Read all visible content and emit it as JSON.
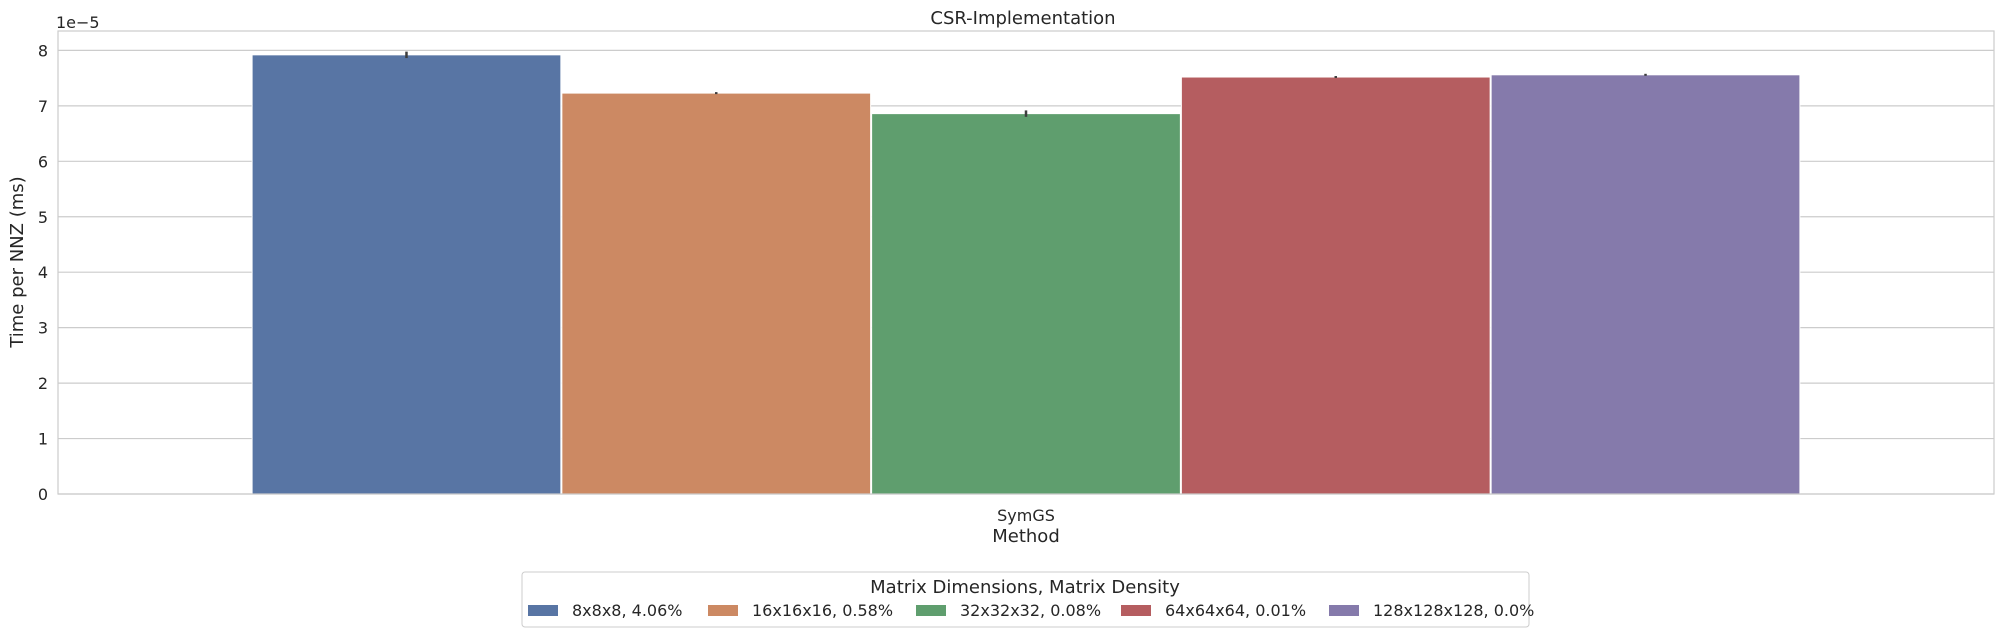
{
  "chart_data": {
    "type": "bar",
    "title": "CSR-Implementation",
    "xlabel": "Method",
    "ylabel": "Time per NNZ (ms)",
    "y_scale_label": "1e−5",
    "categories": [
      "SymGS"
    ],
    "ylim": [
      0,
      8.35
    ],
    "yticks": [
      "0",
      "1",
      "2",
      "3",
      "4",
      "5",
      "6",
      "7",
      "8"
    ],
    "grid": true,
    "legend": {
      "title": "Matrix Dimensions, Matrix Density",
      "placement": "bottom-center"
    },
    "series": [
      {
        "name": "8x8x8, 4.06%",
        "values": [
          7.92
        ],
        "error": [
          0.04
        ],
        "color": "#5875a4"
      },
      {
        "name": "16x16x16, 0.58%",
        "values": [
          7.23
        ],
        "error": [
          0.0
        ],
        "color": "#cc8963"
      },
      {
        "name": "32x32x32, 0.08%",
        "values": [
          6.86
        ],
        "error": [
          0.04
        ],
        "color": "#5f9e6e"
      },
      {
        "name": "64x64x64, 0.01%",
        "values": [
          7.52
        ],
        "error": [
          0.0
        ],
        "color": "#b55d60"
      },
      {
        "name": "128x128x128, 0.0%",
        "values": [
          7.56
        ],
        "error": [
          0.0
        ],
        "color": "#857aab"
      }
    ]
  }
}
